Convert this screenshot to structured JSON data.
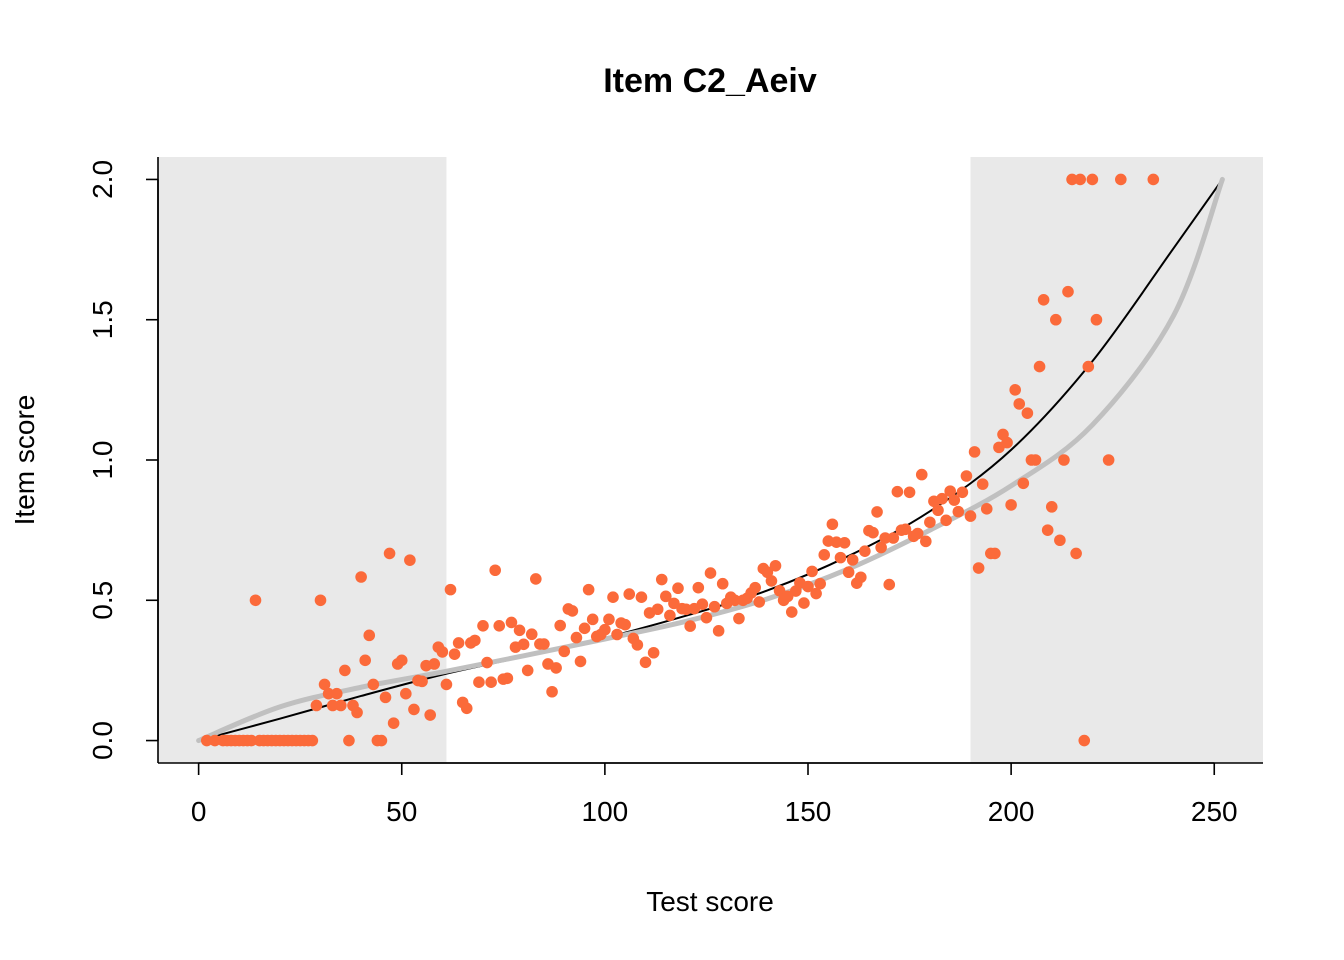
{
  "chart_data": {
    "type": "scatter",
    "title": "Item C2_Aeiv",
    "xlabel": "Test score",
    "ylabel": "Item score",
    "xlim": [
      -10,
      262
    ],
    "ylim": [
      -0.08,
      2.08
    ],
    "xticks": [
      0,
      50,
      100,
      150,
      200,
      250
    ],
    "xtick_labels": [
      "0",
      "50",
      "100",
      "150",
      "200",
      "250"
    ],
    "yticks": [
      0,
      0.5,
      1,
      1.5,
      2
    ],
    "ytick_labels": [
      "0.0",
      "0.5",
      "1.0",
      "1.5",
      "2.0"
    ],
    "grid": false,
    "shaded_regions": [
      {
        "x_from": -10,
        "x_to": 61,
        "color": "#e9e9e9"
      },
      {
        "x_from": 190,
        "x_to": 262,
        "color": "#e9e9e9"
      }
    ],
    "colors": {
      "points": "#fb6a3a",
      "black_curve": "#000000",
      "grey_curve": "#c0c0c0",
      "axis": "#000000"
    },
    "series": [
      {
        "kind": "points",
        "points": [
          [
            2,
            0
          ],
          [
            4,
            0
          ],
          [
            6,
            0
          ],
          [
            7,
            0
          ],
          [
            8,
            0
          ],
          [
            9,
            0
          ],
          [
            10,
            0
          ],
          [
            11,
            0
          ],
          [
            12,
            0
          ],
          [
            13,
            0
          ],
          [
            14,
            0.5
          ],
          [
            15,
            0
          ],
          [
            16,
            0
          ],
          [
            17,
            0
          ],
          [
            18,
            0
          ],
          [
            19,
            0
          ],
          [
            20,
            0
          ],
          [
            21,
            0
          ],
          [
            22,
            0
          ],
          [
            23,
            0
          ],
          [
            24,
            0
          ],
          [
            25,
            0
          ],
          [
            26,
            0
          ],
          [
            27,
            0
          ],
          [
            28,
            0
          ],
          [
            29,
            0.125
          ],
          [
            30,
            0.5
          ],
          [
            31,
            0.2
          ],
          [
            32,
            0.167
          ],
          [
            33,
            0.125
          ],
          [
            34,
            0.167
          ],
          [
            35,
            0.125
          ],
          [
            36,
            0.25
          ],
          [
            37,
            0
          ],
          [
            38,
            0.125
          ],
          [
            39,
            0.1
          ],
          [
            40,
            0.583
          ],
          [
            41,
            0.286
          ],
          [
            42,
            0.375
          ],
          [
            43,
            0.2
          ],
          [
            44,
            0
          ],
          [
            45,
            0
          ],
          [
            46,
            0.154
          ],
          [
            47,
            0.667
          ],
          [
            48,
            0.062
          ],
          [
            49,
            0.273
          ],
          [
            50,
            0.286
          ],
          [
            51,
            0.167
          ],
          [
            52,
            0.643
          ],
          [
            53,
            0.111
          ],
          [
            54,
            0.214
          ],
          [
            55,
            0.211
          ],
          [
            56,
            0.267
          ],
          [
            57,
            0.091
          ],
          [
            58,
            0.273
          ],
          [
            59,
            0.333
          ],
          [
            60,
            0.316
          ],
          [
            61,
            0.2
          ],
          [
            62,
            0.538
          ],
          [
            63,
            0.308
          ],
          [
            64,
            0.348
          ],
          [
            65,
            0.136
          ],
          [
            66,
            0.115
          ],
          [
            67,
            0.348
          ],
          [
            68,
            0.357
          ],
          [
            69,
            0.208
          ],
          [
            70,
            0.409
          ],
          [
            71,
            0.278
          ],
          [
            72,
            0.208
          ],
          [
            73,
            0.607
          ],
          [
            74,
            0.409
          ],
          [
            75,
            0.219
          ],
          [
            76,
            0.222
          ],
          [
            77,
            0.421
          ],
          [
            78,
            0.333
          ],
          [
            79,
            0.393
          ],
          [
            80,
            0.343
          ],
          [
            81,
            0.25
          ],
          [
            82,
            0.379
          ],
          [
            83,
            0.576
          ],
          [
            84,
            0.344
          ],
          [
            85,
            0.344
          ],
          [
            86,
            0.273
          ],
          [
            87,
            0.174
          ],
          [
            88,
            0.259
          ],
          [
            89,
            0.41
          ],
          [
            90,
            0.318
          ],
          [
            91,
            0.469
          ],
          [
            92,
            0.462
          ],
          [
            93,
            0.367
          ],
          [
            94,
            0.282
          ],
          [
            95,
            0.4
          ],
          [
            96,
            0.538
          ],
          [
            97,
            0.432
          ],
          [
            98,
            0.371
          ],
          [
            99,
            0.378
          ],
          [
            100,
            0.395
          ],
          [
            101,
            0.432
          ],
          [
            102,
            0.511
          ],
          [
            103,
            0.378
          ],
          [
            104,
            0.419
          ],
          [
            105,
            0.413
          ],
          [
            106,
            0.522
          ],
          [
            107,
            0.364
          ],
          [
            108,
            0.341
          ],
          [
            109,
            0.511
          ],
          [
            110,
            0.279
          ],
          [
            111,
            0.455
          ],
          [
            112,
            0.313
          ],
          [
            113,
            0.468
          ],
          [
            114,
            0.574
          ],
          [
            115,
            0.514
          ],
          [
            116,
            0.446
          ],
          [
            117,
            0.489
          ],
          [
            118,
            0.543
          ],
          [
            119,
            0.47
          ],
          [
            120,
            0.468
          ],
          [
            121,
            0.408
          ],
          [
            122,
            0.47
          ],
          [
            123,
            0.545
          ],
          [
            124,
            0.486
          ],
          [
            125,
            0.438
          ],
          [
            126,
            0.597
          ],
          [
            127,
            0.477
          ],
          [
            128,
            0.391
          ],
          [
            129,
            0.559
          ],
          [
            130,
            0.489
          ],
          [
            131,
            0.511
          ],
          [
            132,
            0.5
          ],
          [
            133,
            0.435
          ],
          [
            134,
            0.5
          ],
          [
            135,
            0.507
          ],
          [
            136,
            0.526
          ],
          [
            137,
            0.545
          ],
          [
            138,
            0.494
          ],
          [
            139,
            0.613
          ],
          [
            140,
            0.6
          ],
          [
            141,
            0.569
          ],
          [
            142,
            0.623
          ],
          [
            143,
            0.534
          ],
          [
            144,
            0.5
          ],
          [
            145,
            0.514
          ],
          [
            146,
            0.458
          ],
          [
            147,
            0.533
          ],
          [
            148,
            0.562
          ],
          [
            149,
            0.49
          ],
          [
            150,
            0.549
          ],
          [
            151,
            0.603
          ],
          [
            152,
            0.524
          ],
          [
            153,
            0.559
          ],
          [
            154,
            0.662
          ],
          [
            155,
            0.711
          ],
          [
            156,
            0.771
          ],
          [
            157,
            0.707
          ],
          [
            158,
            0.652
          ],
          [
            159,
            0.705
          ],
          [
            160,
            0.6
          ],
          [
            161,
            0.644
          ],
          [
            162,
            0.561
          ],
          [
            163,
            0.582
          ],
          [
            164,
            0.675
          ],
          [
            165,
            0.748
          ],
          [
            166,
            0.741
          ],
          [
            167,
            0.815
          ],
          [
            168,
            0.688
          ],
          [
            169,
            0.722
          ],
          [
            170,
            0.556
          ],
          [
            171,
            0.722
          ],
          [
            172,
            0.887
          ],
          [
            173,
            0.75
          ],
          [
            174,
            0.753
          ],
          [
            175,
            0.885
          ],
          [
            176,
            0.728
          ],
          [
            177,
            0.738
          ],
          [
            178,
            0.948
          ],
          [
            179,
            0.71
          ],
          [
            180,
            0.778
          ],
          [
            181,
            0.853
          ],
          [
            182,
            0.821
          ],
          [
            183,
            0.862
          ],
          [
            184,
            0.785
          ],
          [
            185,
            0.889
          ],
          [
            186,
            0.857
          ],
          [
            187,
            0.816
          ],
          [
            188,
            0.885
          ],
          [
            189,
            0.943
          ],
          [
            190,
            0.8
          ],
          [
            191,
            1.029
          ],
          [
            192,
            0.615
          ],
          [
            193,
            0.914
          ],
          [
            194,
            0.826
          ],
          [
            195,
            0.667
          ],
          [
            196,
            0.667
          ],
          [
            197,
            1.045
          ],
          [
            198,
            1.091
          ],
          [
            199,
            1.062
          ],
          [
            200,
            0.84
          ],
          [
            201,
            1.25
          ],
          [
            202,
            1.2
          ],
          [
            203,
            0.917
          ],
          [
            204,
            1.167
          ],
          [
            205,
            1.0
          ],
          [
            206,
            1.0
          ],
          [
            207,
            1.333
          ],
          [
            208,
            1.571
          ],
          [
            209,
            0.75
          ],
          [
            210,
            0.833
          ],
          [
            211,
            1.5
          ],
          [
            212,
            0.714
          ],
          [
            213,
            1.0
          ],
          [
            214,
            1.6
          ],
          [
            215,
            2.0
          ],
          [
            216,
            0.667
          ],
          [
            217,
            2.0
          ],
          [
            218,
            0
          ],
          [
            219,
            1.333
          ],
          [
            220,
            2.0
          ],
          [
            221,
            1.5
          ],
          [
            224,
            1.0
          ],
          [
            227,
            2.0
          ],
          [
            235,
            2.0
          ]
        ]
      },
      {
        "kind": "curve",
        "color": "black",
        "x": [
          0,
          20,
          40,
          60,
          80,
          100,
          120,
          140,
          160,
          180,
          200,
          220,
          240,
          252
        ],
        "y": [
          0,
          0.078,
          0.159,
          0.235,
          0.299,
          0.366,
          0.445,
          0.535,
          0.658,
          0.817,
          1.036,
          1.352,
          1.755,
          2.0
        ]
      },
      {
        "kind": "curve",
        "color": "grey",
        "x": [
          0,
          20,
          40,
          60,
          80,
          100,
          120,
          140,
          160,
          180,
          200,
          220,
          240,
          252
        ],
        "y": [
          0,
          0.12,
          0.19,
          0.244,
          0.302,
          0.362,
          0.425,
          0.505,
          0.612,
          0.75,
          0.908,
          1.125,
          1.515,
          2.0
        ]
      }
    ]
  }
}
